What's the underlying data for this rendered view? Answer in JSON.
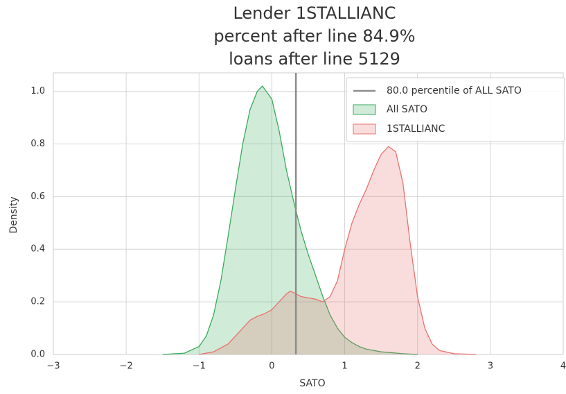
{
  "chart_data": {
    "type": "kde",
    "title": [
      "Lender 1STALLIANC",
      "percent after line 84.9%",
      "loans after line 5129"
    ],
    "xlabel": "SATO",
    "ylabel": "Density",
    "xlim": [
      -3,
      4
    ],
    "ylim": [
      0,
      1.07
    ],
    "xticks": [
      {
        "value": -3,
        "label": "−3"
      },
      {
        "value": -2,
        "label": "−2"
      },
      {
        "value": -1,
        "label": "−1"
      },
      0,
      1,
      2,
      3,
      4
    ],
    "yticks": [
      {
        "value": 0,
        "label": "0.0"
      },
      0.2,
      0.4,
      0.6,
      0.8,
      {
        "value": 1,
        "label": "1.0"
      }
    ],
    "grid": true,
    "legend": "upper right",
    "vline": {
      "x": 0.33,
      "name": "80.0 percentile of ALL SATO",
      "color": "#8c8c8c"
    },
    "series": [
      {
        "name": "All SATO",
        "color": "#3aaa5c",
        "x": [
          -1.5,
          -1.2,
          -1.0,
          -0.9,
          -0.8,
          -0.7,
          -0.6,
          -0.5,
          -0.4,
          -0.3,
          -0.2,
          -0.13,
          0.0,
          0.1,
          0.2,
          0.3,
          0.4,
          0.5,
          0.6,
          0.7,
          0.8,
          0.9,
          1.0,
          1.1,
          1.2,
          1.3,
          1.5,
          1.8,
          2.0
        ],
        "values": [
          0,
          0.005,
          0.03,
          0.07,
          0.15,
          0.28,
          0.45,
          0.63,
          0.8,
          0.93,
          1.0,
          1.02,
          0.97,
          0.85,
          0.7,
          0.58,
          0.47,
          0.38,
          0.3,
          0.22,
          0.15,
          0.1,
          0.065,
          0.045,
          0.03,
          0.02,
          0.01,
          0.003,
          0
        ]
      },
      {
        "name": "1STALLIANC",
        "color": "#e8726e",
        "x": [
          -1.0,
          -0.8,
          -0.6,
          -0.5,
          -0.4,
          -0.3,
          -0.2,
          -0.1,
          0.0,
          0.1,
          0.2,
          0.25,
          0.3,
          0.4,
          0.5,
          0.6,
          0.7,
          0.8,
          0.9,
          1.0,
          1.1,
          1.2,
          1.3,
          1.4,
          1.5,
          1.6,
          1.7,
          1.8,
          1.9,
          2.0,
          2.1,
          2.2,
          2.3,
          2.5,
          2.8
        ],
        "values": [
          0,
          0.01,
          0.04,
          0.07,
          0.1,
          0.13,
          0.145,
          0.155,
          0.17,
          0.2,
          0.23,
          0.24,
          0.235,
          0.22,
          0.215,
          0.21,
          0.2,
          0.22,
          0.28,
          0.4,
          0.5,
          0.57,
          0.63,
          0.7,
          0.76,
          0.79,
          0.77,
          0.65,
          0.42,
          0.22,
          0.1,
          0.04,
          0.015,
          0.003,
          0
        ]
      }
    ]
  }
}
